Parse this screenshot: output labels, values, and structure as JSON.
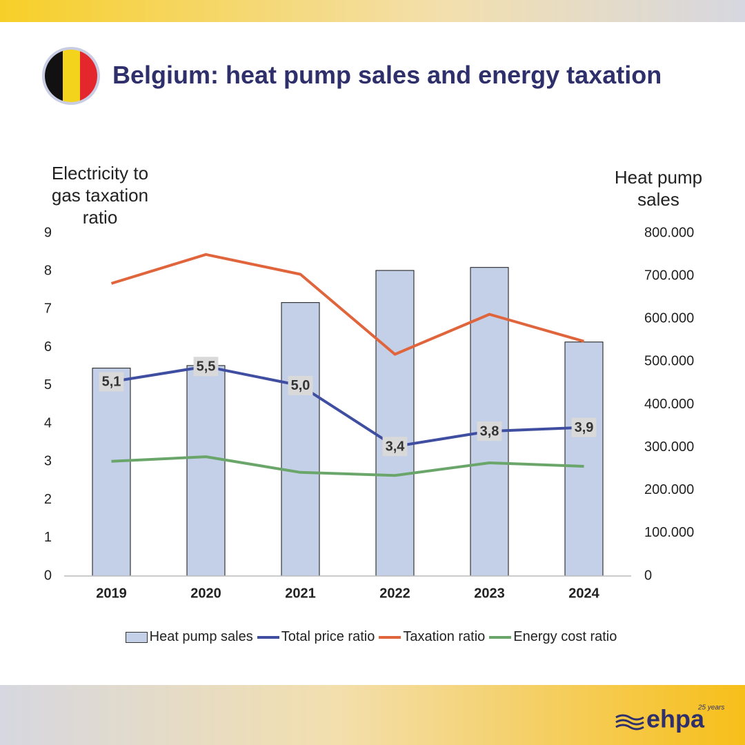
{
  "chart_data": {
    "type": "bar",
    "title": "Belgium: heat pump sales and energy taxation",
    "y_label": "Electricity to gas taxation ratio",
    "y2_label": "Heat pump sales",
    "categories": [
      "2019",
      "2020",
      "2021",
      "2022",
      "2023",
      "2024"
    ],
    "series": [
      {
        "name": "Heat pump sales",
        "type": "bar",
        "axis": "y2",
        "color": "#c3d0e8",
        "values": [
          485000,
          491000,
          638000,
          713000,
          720000,
          546000
        ]
      },
      {
        "name": "Total price ratio",
        "type": "line",
        "color": "#3f4ea0",
        "values": [
          5.1,
          5.5,
          5.0,
          3.4,
          3.8,
          3.9
        ],
        "value_labels": [
          "5,1",
          "5,5",
          "5,0",
          "3,4",
          "3,8",
          "3,9"
        ]
      },
      {
        "name": "Taxation ratio",
        "type": "line",
        "color": "#e0643c",
        "values": [
          7.68,
          8.44,
          7.92,
          5.82,
          6.87,
          6.16
        ]
      },
      {
        "name": "Energy cost ratio",
        "type": "line",
        "color": "#6aa66a",
        "values": [
          3.01,
          3.13,
          2.72,
          2.64,
          2.97,
          2.88
        ]
      }
    ],
    "ylim": [
      0,
      9
    ],
    "yticks": [
      0,
      1,
      2,
      3,
      4,
      5,
      6,
      7,
      8,
      9
    ],
    "y2lim": [
      0,
      800000
    ],
    "y2ticks": [
      0,
      {
        "value": 100000,
        "label": "100.000"
      },
      {
        "value": 200000,
        "label": "200.000"
      },
      {
        "value": 300000,
        "label": "300.000"
      },
      {
        "value": 400000,
        "label": "400.000"
      },
      {
        "value": 500000,
        "label": "500.000"
      },
      {
        "value": 600000,
        "label": "600.000"
      },
      {
        "value": 700000,
        "label": "700.000"
      },
      {
        "value": 800000,
        "label": "800.000"
      }
    ],
    "grid": false,
    "legend": "bottom"
  },
  "logo": {
    "text": "ehpa",
    "tagline": "25 years"
  }
}
